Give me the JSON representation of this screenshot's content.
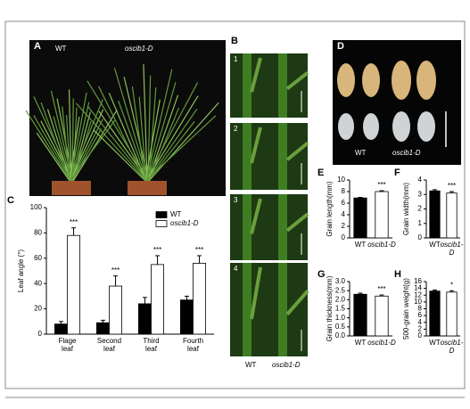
{
  "panels": {
    "A": {
      "letter": "A",
      "labels": [
        "WT",
        "oscib1-D"
      ]
    },
    "B": {
      "letter": "B",
      "tiles": [
        "1",
        "2",
        "3",
        "4"
      ],
      "labels": [
        "WT",
        "oscib1-D"
      ]
    },
    "D": {
      "letter": "D",
      "labels": [
        "WT",
        "oscib1-D"
      ]
    }
  },
  "chart_data": [
    {
      "type": "bar",
      "letter": "C",
      "ylabel": "Leaf angle (°)",
      "categories": [
        "Flage\nleaf",
        "Second\nleaf",
        "Third\nleaf",
        "Fourth\nleaf"
      ],
      "series": [
        {
          "name": "WT",
          "color": "#000000",
          "values": [
            8,
            9,
            24,
            27
          ],
          "errors": [
            2,
            2,
            5,
            3
          ],
          "annotations": [
            null,
            null,
            null,
            null
          ]
        },
        {
          "name": "oscib1-D",
          "color": "#ffffff",
          "values": [
            78,
            38,
            55,
            56
          ],
          "errors": [
            6,
            8,
            7,
            6
          ],
          "annotations": [
            "***",
            "***",
            "***",
            "***"
          ]
        }
      ],
      "ylim": [
        0,
        100
      ],
      "yticks": [
        0,
        20,
        40,
        60,
        80,
        100
      ],
      "legend": "upper right"
    },
    {
      "type": "bar",
      "letter": "E",
      "ylabel": "Grain length(mm)",
      "categories": [
        "WT",
        "oscib1-D"
      ],
      "values": [
        6.9,
        8.0
      ],
      "errors": [
        0.1,
        0.15
      ],
      "colors": [
        "#000000",
        "#ffffff"
      ],
      "annotations": [
        null,
        "***"
      ],
      "ylim": [
        0,
        10
      ],
      "yticks": [
        0,
        2,
        4,
        6,
        8,
        10
      ]
    },
    {
      "type": "bar",
      "letter": "F",
      "ylabel": "Grain width(mm)",
      "categories": [
        "WT",
        "oscib1-D"
      ],
      "values": [
        3.25,
        3.1
      ],
      "errors": [
        0.08,
        0.1
      ],
      "colors": [
        "#000000",
        "#ffffff"
      ],
      "annotations": [
        null,
        "***"
      ],
      "ylim": [
        0,
        4
      ],
      "yticks": [
        0,
        1,
        2,
        3,
        4
      ]
    },
    {
      "type": "bar",
      "letter": "G",
      "ylabel": "Grain thickness(mm)",
      "categories": [
        "WT",
        "oscib1-D"
      ],
      "values": [
        2.3,
        2.2
      ],
      "errors": [
        0.06,
        0.06
      ],
      "colors": [
        "#000000",
        "#ffffff"
      ],
      "annotations": [
        null,
        "***"
      ],
      "ylim": [
        0,
        3
      ],
      "yticks": [
        {
          "value": 0,
          "label": "0.0"
        },
        0.5,
        {
          "value": 1,
          "label": "1.0"
        },
        1.5,
        {
          "value": 2,
          "label": "2.0"
        },
        2.5,
        {
          "value": 3,
          "label": "3.0"
        }
      ]
    },
    {
      "type": "bar",
      "letter": "H",
      "ylabel": "500-grain weight(g)",
      "categories": [
        "WT",
        "oscib1-D"
      ],
      "values": [
        13.2,
        12.9
      ],
      "errors": [
        0.3,
        0.4
      ],
      "colors": [
        "#000000",
        "#ffffff"
      ],
      "annotations": [
        null,
        "*"
      ],
      "ylim": [
        0,
        16
      ],
      "yticks": [
        0,
        2,
        4,
        6,
        8,
        10,
        12,
        14,
        16
      ]
    }
  ]
}
